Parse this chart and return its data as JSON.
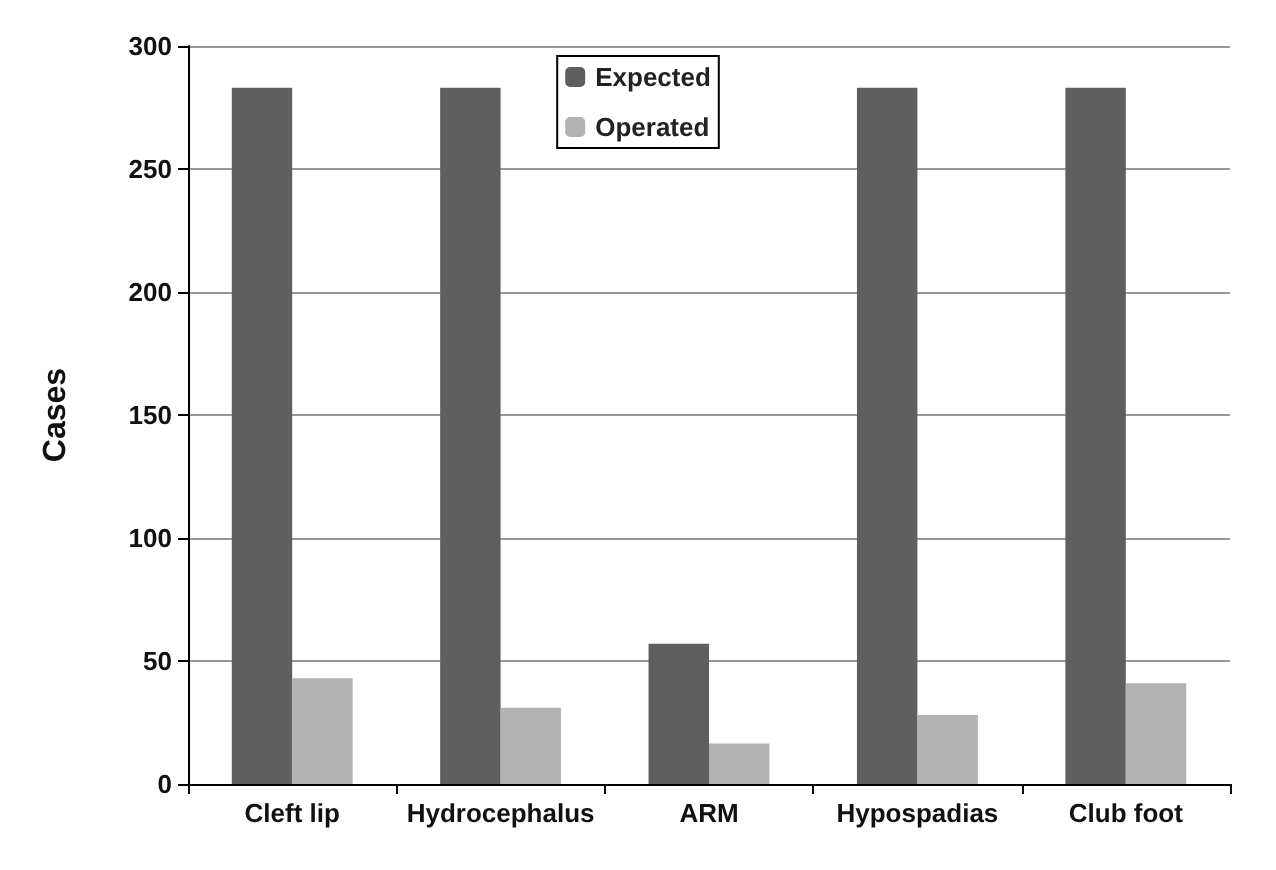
{
  "chart_data": {
    "type": "bar",
    "ylabel": "Cases",
    "categories": [
      "Cleft lip",
      "Hydrocephalus",
      "ARM",
      "Hypospadias",
      "Club foot"
    ],
    "series": [
      {
        "name": "Expected",
        "color": "#5f5f5f",
        "values": [
          283,
          283,
          57,
          283,
          283
        ]
      },
      {
        "name": "Operated",
        "color": "#b2b2b2",
        "values": [
          43,
          31,
          16.5,
          28,
          41
        ]
      }
    ],
    "ylim": [
      0,
      300
    ],
    "yticks": [
      0,
      50,
      100,
      150,
      200,
      250,
      300
    ],
    "grid": "y",
    "legend": "top"
  }
}
